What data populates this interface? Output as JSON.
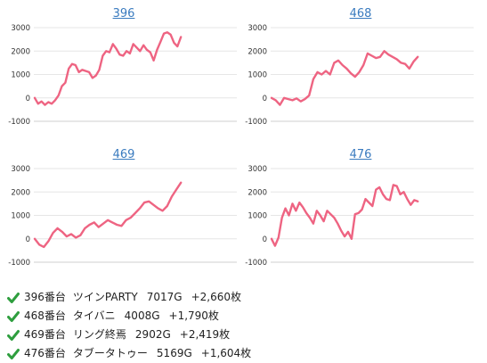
{
  "chart_data": [
    {
      "type": "line",
      "title": "396",
      "ylim": [
        -1000,
        3000
      ],
      "yticks": [
        3000,
        2000,
        1000,
        0,
        -1000
      ],
      "grid": true,
      "values": [
        0,
        -250,
        -150,
        -300,
        -180,
        -250,
        -100,
        100,
        500,
        650,
        1250,
        1450,
        1400,
        1100,
        1200,
        1150,
        1100,
        850,
        950,
        1200,
        1800,
        2000,
        1950,
        2300,
        2100,
        1850,
        1800,
        2000,
        1900,
        2300,
        2150,
        2000,
        2250,
        2050,
        1950,
        1600,
        2050,
        2400,
        2750,
        2800,
        2700,
        2350,
        2200,
        2600
      ]
    },
    {
      "type": "line",
      "title": "468",
      "ylim": [
        -1000,
        3000
      ],
      "yticks": [
        3000,
        2000,
        1000,
        0,
        -1000
      ],
      "grid": true,
      "values": [
        0,
        -100,
        -300,
        0,
        -50,
        -100,
        -20,
        -150,
        -50,
        100,
        800,
        1100,
        1000,
        1150,
        1000,
        1500,
        1600,
        1400,
        1250,
        1050,
        900,
        1100,
        1400,
        1900,
        1800,
        1700,
        1750,
        2000,
        1850,
        1750,
        1650,
        1500,
        1450,
        1250,
        1550,
        1750
      ]
    },
    {
      "type": "line",
      "title": "469",
      "ylim": [
        -1000,
        3000
      ],
      "yticks": [
        3000,
        2000,
        1000,
        0,
        -1000
      ],
      "grid": true,
      "values": [
        0,
        -250,
        -350,
        -100,
        250,
        450,
        300,
        100,
        200,
        50,
        150,
        450,
        600,
        700,
        500,
        650,
        800,
        700,
        600,
        550,
        800,
        900,
        1100,
        1300,
        1550,
        1600,
        1450,
        1300,
        1200,
        1400,
        1800,
        2100,
        2400
      ]
    },
    {
      "type": "line",
      "title": "476",
      "ylim": [
        -1000,
        3000
      ],
      "yticks": [
        3000,
        2000,
        1000,
        0,
        -1000
      ],
      "grid": true,
      "values": [
        0,
        -300,
        50,
        900,
        1300,
        1000,
        1500,
        1200,
        1550,
        1350,
        1100,
        900,
        650,
        1200,
        1000,
        750,
        1200,
        1050,
        900,
        650,
        350,
        100,
        300,
        0,
        1050,
        1100,
        1250,
        1700,
        1550,
        1400,
        2100,
        2200,
        1900,
        1700,
        1650,
        2300,
        2250,
        1900,
        2000,
        1700,
        1450,
        1650,
        1600
      ]
    }
  ],
  "summary": [
    {
      "number": "396番台",
      "machine": "ツインPARTY",
      "games": "7017G",
      "coins": "+2,660枚"
    },
    {
      "number": "468番台",
      "machine": "タイバニ",
      "games": "4008G",
      "coins": "+1,790枚"
    },
    {
      "number": "469番台",
      "machine": "リング終焉",
      "games": "2902G",
      "coins": "+2,419枚"
    },
    {
      "number": "476番台",
      "machine": "タブータトゥー",
      "games": "5169G",
      "coins": "+1,604枚"
    }
  ],
  "colors": {
    "series": "#ee6482",
    "title_link": "#3a7bbf",
    "check": "#2e9e3e"
  },
  "icon": "check-icon"
}
